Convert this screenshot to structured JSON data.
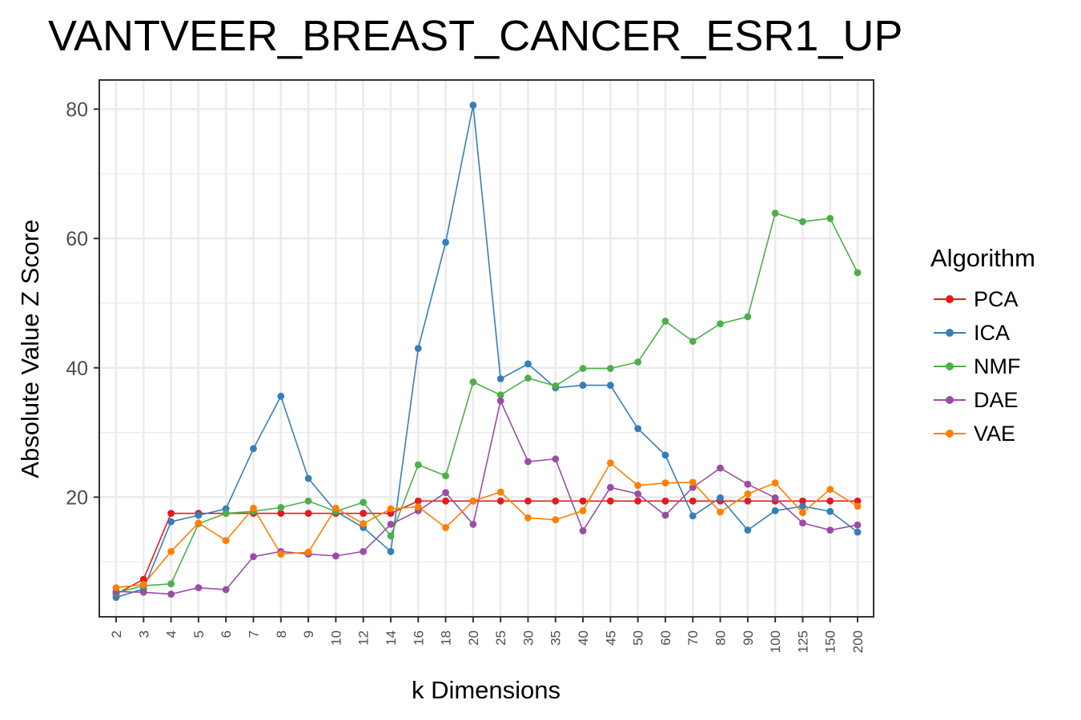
{
  "chart_data": {
    "type": "line",
    "title": "VANTVEER_BREAST_CANCER_ESR1_UP",
    "xlabel": "k Dimensions",
    "ylabel": "Absolute Value Z Score",
    "categories": [
      "2",
      "3",
      "4",
      "5",
      "6",
      "7",
      "8",
      "9",
      "10",
      "12",
      "14",
      "16",
      "18",
      "20",
      "25",
      "30",
      "35",
      "40",
      "45",
      "50",
      "60",
      "70",
      "80",
      "90",
      "100",
      "125",
      "150",
      "200"
    ],
    "ylim": [
      1.5,
      84.5
    ],
    "yticks": [
      20,
      40,
      60,
      80
    ],
    "grid": true,
    "legend": {
      "title": "Algorithm",
      "position": "right"
    },
    "series": [
      {
        "name": "PCA",
        "color": "#E41A1C",
        "values": [
          5.0,
          7.3,
          17.5,
          17.5,
          17.5,
          17.5,
          17.5,
          17.5,
          17.5,
          17.5,
          17.5,
          19.4,
          19.4,
          19.4,
          19.4,
          19.4,
          19.4,
          19.4,
          19.4,
          19.4,
          19.4,
          19.4,
          19.4,
          19.4,
          19.4,
          19.4,
          19.4,
          19.4
        ]
      },
      {
        "name": "ICA",
        "color": "#377EB8",
        "values": [
          4.5,
          5.8,
          16.2,
          17.2,
          18.2,
          27.5,
          35.6,
          22.9,
          17.8,
          15.3,
          11.6,
          43.0,
          59.4,
          80.6,
          38.3,
          40.6,
          36.9,
          37.3,
          37.3,
          30.6,
          26.5,
          17.1,
          19.9,
          14.9,
          17.9,
          18.6,
          17.8,
          14.6
        ]
      },
      {
        "name": "NMF",
        "color": "#4DAF4A",
        "values": [
          5.2,
          6.3,
          6.6,
          15.9,
          17.5,
          17.8,
          18.4,
          19.4,
          17.8,
          19.2,
          14.0,
          25.0,
          23.3,
          37.8,
          35.8,
          38.4,
          37.2,
          39.9,
          39.9,
          40.9,
          47.2,
          44.1,
          46.8,
          47.9,
          63.9,
          62.6,
          63.1,
          54.7
        ]
      },
      {
        "name": "DAE",
        "color": "#984EA3",
        "values": [
          5.4,
          5.3,
          5.0,
          6.0,
          5.7,
          10.8,
          11.6,
          11.2,
          10.9,
          11.6,
          15.8,
          17.9,
          20.7,
          15.8,
          34.9,
          25.5,
          25.9,
          14.8,
          21.5,
          20.5,
          17.2,
          21.5,
          24.5,
          22.0,
          19.9,
          16.0,
          14.9,
          15.7
        ]
      },
      {
        "name": "VAE",
        "color": "#FF7F00",
        "values": [
          6.0,
          6.5,
          11.6,
          16.0,
          13.3,
          18.3,
          11.2,
          11.5,
          18.3,
          15.9,
          18.2,
          18.5,
          15.3,
          19.4,
          20.8,
          16.8,
          16.5,
          17.9,
          25.3,
          21.8,
          22.2,
          22.3,
          17.7,
          20.5,
          22.2,
          17.6,
          21.2,
          18.6
        ]
      }
    ]
  }
}
